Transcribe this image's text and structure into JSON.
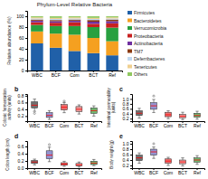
{
  "chart_data": [
    {
      "type": "bar",
      "stacked": true,
      "title": "Phylum-Level Relative Bacteria",
      "ylabel": "Relative abundance (%)",
      "categories": [
        "WBC",
        "BCF",
        "Com",
        "BCT",
        "Ref"
      ],
      "series": [
        {
          "name": "Firmicutes",
          "color": "#2060a8",
          "values": [
            50,
            42,
            36,
            32,
            28
          ]
        },
        {
          "name": "Bacteroidetes",
          "color": "#f5a020",
          "values": [
            22,
            26,
            30,
            28,
            26
          ]
        },
        {
          "name": "Verrucomicrobia",
          "color": "#28a040",
          "values": [
            12,
            14,
            16,
            20,
            25
          ]
        },
        {
          "name": "Proteobacteria",
          "color": "#c82020",
          "values": [
            5,
            6,
            7,
            6,
            8
          ]
        },
        {
          "name": "Actinobacteria",
          "color": "#7030a0",
          "values": [
            3,
            3,
            3,
            4,
            4
          ]
        },
        {
          "name": "TM7",
          "color": "#8b3a10",
          "values": [
            2,
            2,
            2,
            3,
            3
          ]
        },
        {
          "name": "Deferribacteres",
          "color": "#c0d8f0",
          "values": [
            2,
            2,
            2,
            2,
            2
          ]
        },
        {
          "name": "Tenericutes",
          "color": "#f0d090",
          "values": [
            2,
            2,
            2,
            2,
            2
          ]
        },
        {
          "name": "Others",
          "color": "#90c860",
          "values": [
            2,
            3,
            2,
            3,
            2
          ]
        }
      ],
      "ylim": [
        0,
        110
      ],
      "yticks": [
        0,
        20,
        40,
        60,
        80,
        100
      ],
      "legend": "right"
    },
    {
      "type": "box",
      "annotations": [
        "b"
      ],
      "ylabel": "Colonic fermentation\nactivity (units)",
      "categories": [
        "WBC",
        "BCF",
        "Com",
        "BCT",
        "Ref"
      ],
      "colors": [
        "#606060",
        "#8888cc",
        "#e86060",
        "#e89090",
        "#60b060"
      ],
      "boxes": [
        {
          "med": 0.52,
          "q1": 0.44,
          "q3": 0.62,
          "whislo": 0.34,
          "whishi": 0.7,
          "fliers": [
            0.28
          ]
        },
        {
          "med": 0.22,
          "q1": 0.16,
          "q3": 0.3,
          "whislo": 0.1,
          "whishi": 0.36,
          "fliers": []
        },
        {
          "med": 0.46,
          "q1": 0.38,
          "q3": 0.54,
          "whislo": 0.3,
          "whishi": 0.6,
          "fliers": [
            0.64
          ]
        },
        {
          "med": 0.4,
          "q1": 0.33,
          "q3": 0.48,
          "whislo": 0.26,
          "whishi": 0.53,
          "fliers": []
        },
        {
          "med": 0.36,
          "q1": 0.28,
          "q3": 0.44,
          "whislo": 0.2,
          "whishi": 0.5,
          "fliers": []
        }
      ],
      "ylim": [
        0.05,
        0.85
      ],
      "yticks": [
        0.2,
        0.4,
        0.6,
        0.8
      ]
    },
    {
      "type": "box",
      "annotations": [
        "c"
      ],
      "ylabel": "Intestinal permeability\n(units)",
      "categories": [
        "WBC",
        "BCF",
        "Com",
        "BCT",
        "Ref"
      ],
      "colors": [
        "#606060",
        "#8888cc",
        "#e86060",
        "#e89090",
        "#60b060"
      ],
      "boxes": [
        {
          "med": 0.42,
          "q1": 0.33,
          "q3": 0.52,
          "whislo": 0.22,
          "whishi": 0.62,
          "fliers": []
        },
        {
          "med": 0.72,
          "q1": 0.58,
          "q3": 0.85,
          "whislo": 0.45,
          "whishi": 0.98,
          "fliers": [
            1.12
          ]
        },
        {
          "med": 0.36,
          "q1": 0.28,
          "q3": 0.46,
          "whislo": 0.2,
          "whishi": 0.52,
          "fliers": []
        },
        {
          "med": 0.3,
          "q1": 0.23,
          "q3": 0.38,
          "whislo": 0.16,
          "whishi": 0.46,
          "fliers": []
        },
        {
          "med": 0.33,
          "q1": 0.26,
          "q3": 0.42,
          "whislo": 0.18,
          "whishi": 0.5,
          "fliers": []
        }
      ],
      "ylim": [
        0.1,
        1.2
      ],
      "yticks": [
        0.2,
        0.4,
        0.6,
        0.8,
        {
          "value": 1,
          "label": "1.0"
        }
      ]
    },
    {
      "type": "box",
      "annotations": [
        "d"
      ],
      "ylabel": "Colon length (cm)",
      "categories": [
        "WBC",
        "BCF",
        "Com",
        "BCT",
        "Ref"
      ],
      "colors": [
        "#606060",
        "#8888cc",
        "#e86060",
        "#e89090",
        "#60b060"
      ],
      "boxes": [
        {
          "med": 0.17,
          "q1": 0.13,
          "q3": 0.21,
          "whislo": 0.09,
          "whishi": 0.25,
          "fliers": []
        },
        {
          "med": 0.36,
          "q1": 0.26,
          "q3": 0.48,
          "whislo": 0.18,
          "whishi": 0.58,
          "fliers": [
            0.65
          ]
        },
        {
          "med": 0.11,
          "q1": 0.08,
          "q3": 0.15,
          "whislo": 0.05,
          "whishi": 0.19,
          "fliers": []
        },
        {
          "med": 0.09,
          "q1": 0.06,
          "q3": 0.13,
          "whislo": 0.03,
          "whishi": 0.17,
          "fliers": []
        },
        {
          "med": 0.14,
          "q1": 0.1,
          "q3": 0.19,
          "whislo": 0.07,
          "whishi": 0.24,
          "fliers": []
        }
      ],
      "ylim": [
        0.0,
        0.75
      ],
      "yticks": [
        {
          "value": 0,
          "label": "0.0"
        },
        0.2,
        0.4,
        0.6
      ]
    },
    {
      "type": "box",
      "annotations": [
        "e"
      ],
      "ylabel": "Body weight (g)",
      "categories": [
        "WBC",
        "BCF",
        "Com",
        "BCT",
        "Ref"
      ],
      "colors": [
        "#606060",
        "#8888cc",
        "#e86060",
        "#e89090",
        "#60b060"
      ],
      "boxes": [
        {
          "med": 0.48,
          "q1": 0.38,
          "q3": 0.58,
          "whislo": 0.28,
          "whishi": 0.66,
          "fliers": []
        },
        {
          "med": 0.7,
          "q1": 0.58,
          "q3": 0.8,
          "whislo": 0.46,
          "whishi": 0.88,
          "fliers": [
            1.0
          ]
        },
        {
          "med": 0.36,
          "q1": 0.28,
          "q3": 0.44,
          "whislo": 0.2,
          "whishi": 0.5,
          "fliers": []
        },
        {
          "med": 0.33,
          "q1": 0.26,
          "q3": 0.4,
          "whislo": 0.18,
          "whishi": 0.48,
          "fliers": []
        },
        {
          "med": 0.4,
          "q1": 0.32,
          "q3": 0.48,
          "whislo": 0.24,
          "whishi": 0.56,
          "fliers": []
        }
      ],
      "ylim": [
        0.1,
        1.1
      ],
      "yticks": [
        0.2,
        0.4,
        0.6,
        0.8,
        {
          "value": 1,
          "label": "1.0"
        }
      ]
    }
  ]
}
